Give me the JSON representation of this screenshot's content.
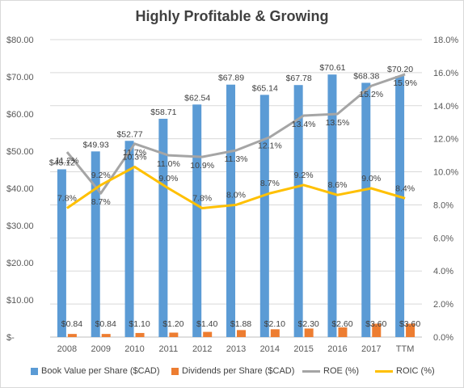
{
  "chart_data": {
    "type": "bar",
    "title": "Highly Profitable & Growing",
    "categories": [
      "2008",
      "2009",
      "2010",
      "2011",
      "2012",
      "2013",
      "2014",
      "2015",
      "2016",
      "2017",
      "TTM"
    ],
    "series": [
      {
        "name": "Book Value per Share ($CAD)",
        "kind": "bar",
        "axis": "left",
        "color": "#5b9bd5",
        "values": [
          45.12,
          49.93,
          52.77,
          58.71,
          62.54,
          67.89,
          65.14,
          67.78,
          70.61,
          68.38,
          70.2
        ],
        "labels": [
          "$45.12",
          "$49.93",
          "$52.77",
          "$58.71",
          "$62.54",
          "$67.89",
          "$65.14",
          "$67.78",
          "$70.61",
          "$68.38",
          "$70.20"
        ]
      },
      {
        "name": "Dividends per Share ($CAD)",
        "kind": "bar",
        "axis": "left",
        "color": "#ed7d31",
        "values": [
          0.84,
          0.84,
          1.1,
          1.2,
          1.4,
          1.88,
          2.1,
          2.3,
          2.6,
          3.6,
          3.6
        ],
        "labels": [
          "$0.84",
          "$0.84",
          "$1.10",
          "$1.20",
          "$1.40",
          "$1.88",
          "$2.10",
          "$2.30",
          "$2.60",
          "$3.60",
          "$3.60"
        ]
      },
      {
        "name": "ROE (%)",
        "kind": "line",
        "axis": "right",
        "color": "#a5a5a5",
        "values": [
          11.2,
          8.7,
          11.7,
          11.0,
          10.9,
          11.3,
          12.1,
          13.4,
          13.5,
          15.2,
          15.9
        ],
        "labels": [
          "11.2%",
          "8.7%",
          "11.7%",
          "11.0%",
          "10.9%",
          "11.3%",
          "12.1%",
          "13.4%",
          "13.5%",
          "15.2%",
          "15.9%"
        ]
      },
      {
        "name": "ROIC (%)",
        "kind": "line",
        "axis": "right",
        "color": "#ffc000",
        "values": [
          7.8,
          9.2,
          10.3,
          9.0,
          7.8,
          8.0,
          8.7,
          9.2,
          8.6,
          9.0,
          8.4
        ],
        "labels": [
          "7.8%",
          "9.2%",
          "10.3%",
          "9.0%",
          "7.8%",
          "8.0%",
          "8.7%",
          "9.2%",
          "8.6%",
          "9.0%",
          "8.4%"
        ]
      }
    ],
    "y_left": {
      "min": 0,
      "max": 80,
      "ticks": [
        "$-",
        "$10.00",
        "$20.00",
        "$30.00",
        "$40.00",
        "$50.00",
        "$60.00",
        "$70.00",
        "$80.00"
      ]
    },
    "y_right": {
      "min": 0,
      "max": 18,
      "ticks": [
        "0.0%",
        "2.0%",
        "4.0%",
        "6.0%",
        "8.0%",
        "10.0%",
        "12.0%",
        "14.0%",
        "16.0%",
        "18.0%"
      ]
    },
    "grid": true,
    "legend_position": "bottom"
  }
}
